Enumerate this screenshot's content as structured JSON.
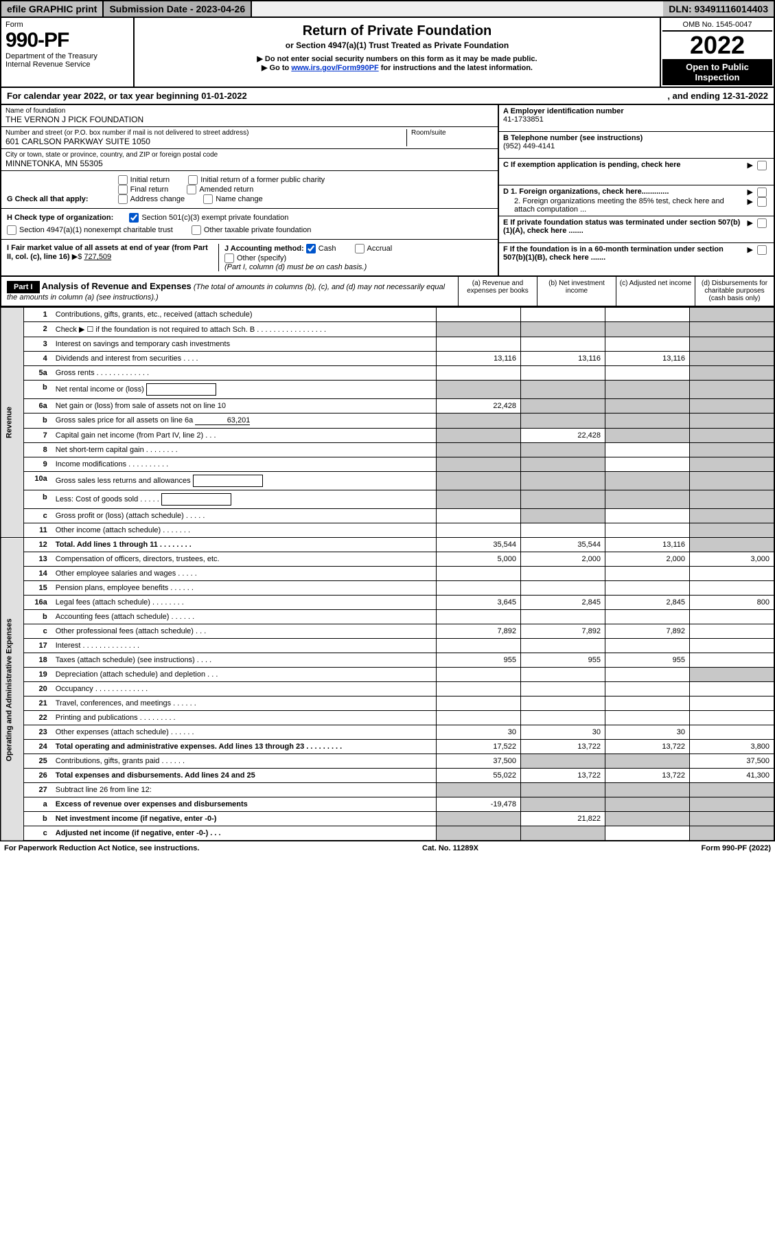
{
  "top": {
    "efile": "efile GRAPHIC print",
    "submission": "Submission Date - 2023-04-26",
    "dln": "DLN: 93491116014403"
  },
  "header": {
    "form": "Form",
    "formNo": "990-PF",
    "dept": "Department of the Treasury",
    "irs": "Internal Revenue Service",
    "title": "Return of Private Foundation",
    "subtitle": "or Section 4947(a)(1) Trust Treated as Private Foundation",
    "note1": "▶ Do not enter social security numbers on this form as it may be made public.",
    "note2_pre": "▶ Go to ",
    "note2_link": "www.irs.gov/Form990PF",
    "note2_post": " for instructions and the latest information.",
    "omb": "OMB No. 1545-0047",
    "year": "2022",
    "inspect": "Open to Public Inspection"
  },
  "calyear": {
    "pre": "For calendar year 2022, or tax year beginning 01-01-2022",
    "end": ", and ending 12-31-2022"
  },
  "org": {
    "nameHint": "Name of foundation",
    "name": "THE VERNON J PICK FOUNDATION",
    "addrHint": "Number and street (or P.O. box number if mail is not delivered to street address)",
    "addr": "601 CARLSON PARKWAY SUITE 1050",
    "roomHint": "Room/suite",
    "cityHint": "City or town, state or province, country, and ZIP or foreign postal code",
    "city": "MINNETONKA, MN  55305"
  },
  "right": {
    "A": "A Employer identification number",
    "Aval": "41-1733851",
    "B": "B Telephone number (see instructions)",
    "Bval": "(952) 449-4141",
    "C": "C If exemption application is pending, check here",
    "D1": "D 1. Foreign organizations, check here.............",
    "D2": "2. Foreign organizations meeting the 85% test, check here and attach computation ...",
    "E": "E  If private foundation status was terminated under section 507(b)(1)(A), check here .......",
    "F": "F  If the foundation is in a 60-month termination under section 507(b)(1)(B), check here .......",
    "arrow": "▶"
  },
  "G": {
    "label": "G Check all that apply:",
    "initial": "Initial return",
    "initialPub": "Initial return of a former public charity",
    "final": "Final return",
    "amended": "Amended return",
    "addrChange": "Address change",
    "nameChange": "Name change"
  },
  "H": {
    "label": "H Check type of organization:",
    "s501": "Section 501(c)(3) exempt private foundation",
    "s4947": "Section 4947(a)(1) nonexempt charitable trust",
    "other": "Other taxable private foundation"
  },
  "I": {
    "label": "I Fair market value of all assets at end of year (from Part II, col. (c), line 16)",
    "arrow": "▶$",
    "val": "727,509"
  },
  "J": {
    "label": "J Accounting method:",
    "cash": "Cash",
    "accrual": "Accrual",
    "other": "Other (specify)",
    "note": "(Part I, column (d) must be on cash basis.)"
  },
  "partI": {
    "part": "Part I",
    "title": "Analysis of Revenue and Expenses",
    "titleNote": "(The total of amounts in columns (b), (c), and (d) may not necessarily equal the amounts in column (a) (see instructions).)",
    "colA": "(a)   Revenue and expenses per books",
    "colB": "(b)   Net investment income",
    "colC": "(c)   Adjusted net income",
    "colD": "(d)   Disbursements for charitable purposes (cash basis only)"
  },
  "sections": {
    "revenue": "Revenue",
    "expenses": "Operating and Administrative Expenses"
  },
  "lines": [
    {
      "n": "1",
      "label": "Contributions, gifts, grants, etc., received (attach schedule)",
      "a": "",
      "b": "",
      "c": "",
      "d": "",
      "shadeB": false,
      "shadeC": false,
      "shadeD": true
    },
    {
      "n": "2",
      "label": "Check ▶ ☐ if the foundation is not required to attach Sch. B   .  .  .  .  .  .  .  .  .  .  .  .  .  .  .  .  .",
      "a": "",
      "b": "",
      "c": "",
      "d": "",
      "shadeA": true,
      "shadeB": true,
      "shadeC": true,
      "shadeD": true
    },
    {
      "n": "3",
      "label": "Interest on savings and temporary cash investments",
      "a": "",
      "b": "",
      "c": "",
      "d": "",
      "shadeD": true
    },
    {
      "n": "4",
      "label": "Dividends and interest from securities   .   .   .   .",
      "a": "13,116",
      "b": "13,116",
      "c": "13,116",
      "d": "",
      "shadeD": true
    },
    {
      "n": "5a",
      "label": "Gross rents   .   .   .   .   .   .   .   .   .   .   .   .   .",
      "a": "",
      "b": "",
      "c": "",
      "d": "",
      "shadeD": true
    },
    {
      "n": "b",
      "label": "Net rental income or (loss)",
      "a": "",
      "b": "",
      "c": "",
      "d": "",
      "shadeA": true,
      "shadeB": true,
      "shadeC": true,
      "shadeD": true,
      "inline": true
    },
    {
      "n": "6a",
      "label": "Net gain or (loss) from sale of assets not on line 10",
      "a": "22,428",
      "b": "",
      "c": "",
      "d": "",
      "shadeB": true,
      "shadeC": true,
      "shadeD": true
    },
    {
      "n": "b",
      "label": "Gross sales price for all assets on line 6a",
      "a": "",
      "b": "",
      "c": "",
      "d": "",
      "shadeA": true,
      "shadeB": true,
      "shadeC": true,
      "shadeD": true,
      "inline": true,
      "inlineVal": "63,201"
    },
    {
      "n": "7",
      "label": "Capital gain net income (from Part IV, line 2)   .   .   .",
      "a": "",
      "b": "22,428",
      "c": "",
      "d": "",
      "shadeA": true,
      "shadeC": true,
      "shadeD": true
    },
    {
      "n": "8",
      "label": "Net short-term capital gain   .   .   .   .   .   .   .   .",
      "a": "",
      "b": "",
      "c": "",
      "d": "",
      "shadeA": true,
      "shadeB": true,
      "shadeD": true
    },
    {
      "n": "9",
      "label": "Income modifications   .   .   .   .   .   .   .   .   .   .",
      "a": "",
      "b": "",
      "c": "",
      "d": "",
      "shadeA": true,
      "shadeB": true,
      "shadeD": true
    },
    {
      "n": "10a",
      "label": "Gross sales less returns and allowances",
      "a": "",
      "b": "",
      "c": "",
      "d": "",
      "shadeA": true,
      "shadeB": true,
      "shadeC": true,
      "shadeD": true,
      "inline": true
    },
    {
      "n": "b",
      "label": "Less: Cost of goods sold   .   .   .   .   .",
      "a": "",
      "b": "",
      "c": "",
      "d": "",
      "shadeA": true,
      "shadeB": true,
      "shadeC": true,
      "shadeD": true,
      "inline": true
    },
    {
      "n": "c",
      "label": "Gross profit or (loss) (attach schedule)   .   .   .   .   .",
      "a": "",
      "b": "",
      "c": "",
      "d": "",
      "shadeB": true,
      "shadeD": true
    },
    {
      "n": "11",
      "label": "Other income (attach schedule)   .   .   .   .   .   .   .",
      "a": "",
      "b": "",
      "c": "",
      "d": "",
      "shadeD": true
    },
    {
      "n": "12",
      "label": "Total. Add lines 1 through 11   .   .   .   .   .   .   .   .",
      "a": "35,544",
      "b": "35,544",
      "c": "13,116",
      "d": "",
      "bold": true,
      "shadeD": true
    },
    {
      "n": "13",
      "label": "Compensation of officers, directors, trustees, etc.",
      "a": "5,000",
      "b": "2,000",
      "c": "2,000",
      "d": "3,000"
    },
    {
      "n": "14",
      "label": "Other employee salaries and wages   .   .   .   .   .",
      "a": "",
      "b": "",
      "c": "",
      "d": ""
    },
    {
      "n": "15",
      "label": "Pension plans, employee benefits   .   .   .   .   .   .",
      "a": "",
      "b": "",
      "c": "",
      "d": ""
    },
    {
      "n": "16a",
      "label": "Legal fees (attach schedule)   .   .   .   .   .   .   .   .",
      "a": "3,645",
      "b": "2,845",
      "c": "2,845",
      "d": "800"
    },
    {
      "n": "b",
      "label": "Accounting fees (attach schedule)   .   .   .   .   .   .",
      "a": "",
      "b": "",
      "c": "",
      "d": ""
    },
    {
      "n": "c",
      "label": "Other professional fees (attach schedule)   .   .   .",
      "a": "7,892",
      "b": "7,892",
      "c": "7,892",
      "d": ""
    },
    {
      "n": "17",
      "label": "Interest   .   .   .   .   .   .   .   .   .   .   .   .   .   .",
      "a": "",
      "b": "",
      "c": "",
      "d": ""
    },
    {
      "n": "18",
      "label": "Taxes (attach schedule) (see instructions)   .   .   .   .",
      "a": "955",
      "b": "955",
      "c": "955",
      "d": ""
    },
    {
      "n": "19",
      "label": "Depreciation (attach schedule) and depletion   .   .   .",
      "a": "",
      "b": "",
      "c": "",
      "d": "",
      "shadeD": true
    },
    {
      "n": "20",
      "label": "Occupancy   .   .   .   .   .   .   .   .   .   .   .   .   .",
      "a": "",
      "b": "",
      "c": "",
      "d": ""
    },
    {
      "n": "21",
      "label": "Travel, conferences, and meetings   .   .   .   .   .   .",
      "a": "",
      "b": "",
      "c": "",
      "d": ""
    },
    {
      "n": "22",
      "label": "Printing and publications   .   .   .   .   .   .   .   .   .",
      "a": "",
      "b": "",
      "c": "",
      "d": ""
    },
    {
      "n": "23",
      "label": "Other expenses (attach schedule)   .   .   .   .   .   .",
      "a": "30",
      "b": "30",
      "c": "30",
      "d": ""
    },
    {
      "n": "24",
      "label": "Total operating and administrative expenses. Add lines 13 through 23   .   .   .   .   .   .   .   .   .",
      "a": "17,522",
      "b": "13,722",
      "c": "13,722",
      "d": "3,800",
      "bold": true
    },
    {
      "n": "25",
      "label": "Contributions, gifts, grants paid   .   .   .   .   .   .",
      "a": "37,500",
      "b": "",
      "c": "",
      "d": "37,500",
      "shadeB": true,
      "shadeC": true
    },
    {
      "n": "26",
      "label": "Total expenses and disbursements. Add lines 24 and 25",
      "a": "55,022",
      "b": "13,722",
      "c": "13,722",
      "d": "41,300",
      "bold": true
    },
    {
      "n": "27",
      "label": "Subtract line 26 from line 12:",
      "a": "",
      "b": "",
      "c": "",
      "d": "",
      "shadeA": true,
      "shadeB": true,
      "shadeC": true,
      "shadeD": true
    },
    {
      "n": "a",
      "label": "Excess of revenue over expenses and disbursements",
      "a": "-19,478",
      "b": "",
      "c": "",
      "d": "",
      "bold": true,
      "shadeB": true,
      "shadeC": true,
      "shadeD": true
    },
    {
      "n": "b",
      "label": "Net investment income (if negative, enter -0-)",
      "a": "",
      "b": "21,822",
      "c": "",
      "d": "",
      "bold": true,
      "shadeA": true,
      "shadeC": true,
      "shadeD": true
    },
    {
      "n": "c",
      "label": "Adjusted net income (if negative, enter -0-)   .   .   .",
      "a": "",
      "b": "",
      "c": "",
      "d": "",
      "bold": true,
      "shadeA": true,
      "shadeB": true,
      "shadeD": true
    }
  ],
  "footer": {
    "left": "For Paperwork Reduction Act Notice, see instructions.",
    "mid": "Cat. No. 11289X",
    "right": "Form 990-PF (2022)"
  }
}
